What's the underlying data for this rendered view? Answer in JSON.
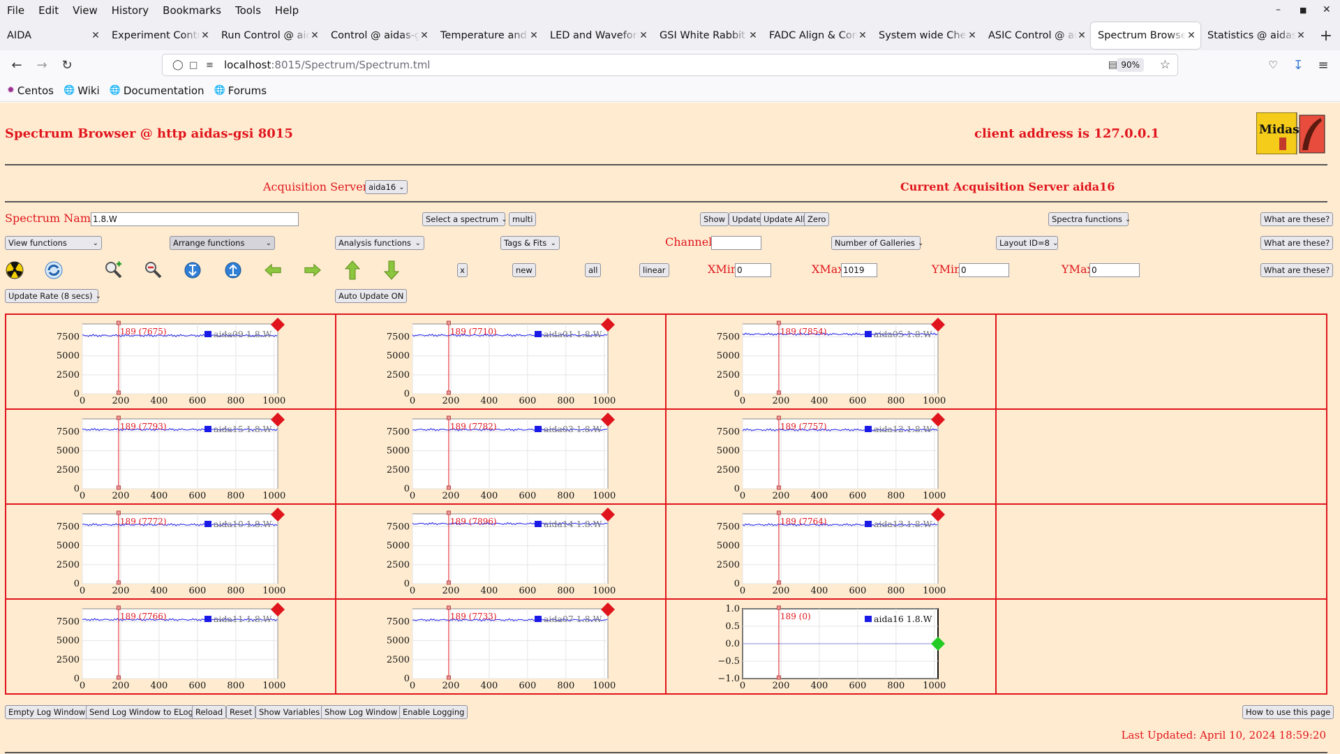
{
  "browser": {
    "menu": [
      "File",
      "Edit",
      "View",
      "History",
      "Bookmarks",
      "Tools",
      "Help"
    ],
    "tabs": [
      {
        "label": "AIDA"
      },
      {
        "label": "Experiment Control"
      },
      {
        "label": "Run Control @ aidas"
      },
      {
        "label": "Control @ aidas-gsi"
      },
      {
        "label": "Temperature and s"
      },
      {
        "label": "LED and Waveform"
      },
      {
        "label": "GSI White Rabbit T"
      },
      {
        "label": "FADC Align & Cont"
      },
      {
        "label": "System wide Check"
      },
      {
        "label": "ASIC Control @ aida"
      },
      {
        "label": "Spectrum Browser"
      },
      {
        "label": "Statistics @ aidas-"
      }
    ],
    "active_tab": 10,
    "url_host": "localhost",
    "url_path": ":8015/Spectrum/Spectrum.tml",
    "zoom": "90%",
    "bookmarks": [
      "Centos",
      "Wiki",
      "Documentation",
      "Forums"
    ]
  },
  "header": {
    "title": "Spectrum Browser @ http aidas-gsi 8015",
    "client": "client address is 127.0.0.1",
    "logo_text": "Midas"
  },
  "acq": {
    "label": "Acquisition Servers",
    "selected": "aida16",
    "current": "Current Acquisition Server aida16"
  },
  "controls": {
    "spectrum_name_label": "Spectrum Name:",
    "spectrum_name_value": "1.8.W",
    "select_spectrum": "Select a spectrum",
    "multi": "multi",
    "show": "Show",
    "update": "Update",
    "update_all": "Update All",
    "zero": "Zero",
    "spectra_functions": "Spectra functions",
    "what": "What are these?",
    "view_functions": "View functions",
    "arrange_functions": "Arrange functions",
    "analysis_functions": "Analysis functions",
    "tags_fits": "Tags & Fits",
    "channel_label": "Channel:",
    "channel_value": "",
    "galleries": "Number of Galleries",
    "layout": "Layout ID=8",
    "x": "x",
    "new": "new",
    "all": "all",
    "linear": "linear",
    "xmin_label": "XMin",
    "xmin": "0",
    "xmax_label": "XMax",
    "xmax": "1019",
    "ymin_label": "YMin",
    "ymin": "0",
    "ymax_label": "YMax",
    "ymax": "0",
    "update_rate": "Update Rate (8 secs)",
    "auto_update": "Auto Update ON"
  },
  "icons": [
    "radiation-icon",
    "refresh-icon",
    "zoom-in-icon",
    "zoom-out-icon",
    "expand-down-icon",
    "expand-up-icon",
    "arrow-left-icon",
    "arrow-right-icon",
    "arrow-up-icon",
    "arrow-down-icon"
  ],
  "chart_data": [
    {
      "type": "line",
      "legend": "aida09 1.8.W",
      "marker": "189 (7675)",
      "x_ticks": [
        0,
        200,
        400,
        600,
        800,
        1000
      ],
      "y_ticks": [
        0,
        2500,
        5000,
        7500
      ],
      "ylim": [
        0,
        9200
      ],
      "level": 7675,
      "status": "red"
    },
    {
      "type": "line",
      "legend": "aida01 1.8.W",
      "marker": "189 (7710)",
      "x_ticks": [
        0,
        200,
        400,
        600,
        800,
        1000
      ],
      "y_ticks": [
        0,
        2500,
        5000,
        7500
      ],
      "ylim": [
        0,
        9200
      ],
      "level": 7710,
      "status": "red"
    },
    {
      "type": "line",
      "legend": "aida05 1.8.W",
      "marker": "189 (7854)",
      "x_ticks": [
        0,
        200,
        400,
        600,
        800,
        1000
      ],
      "y_ticks": [
        0,
        2500,
        5000,
        7500
      ],
      "ylim": [
        0,
        9200
      ],
      "level": 7854,
      "status": "red"
    },
    {
      "type": "line",
      "legend": "aida15 1.8.W",
      "marker": "189 (7793)",
      "x_ticks": [
        0,
        200,
        400,
        600,
        800,
        1000
      ],
      "y_ticks": [
        0,
        2500,
        5000,
        7500
      ],
      "ylim": [
        0,
        9200
      ],
      "level": 7793,
      "status": "red"
    },
    {
      "type": "line",
      "legend": "aida03 1.8.W",
      "marker": "189 (7782)",
      "x_ticks": [
        0,
        200,
        400,
        600,
        800,
        1000
      ],
      "y_ticks": [
        0,
        2500,
        5000,
        7500
      ],
      "ylim": [
        0,
        9200
      ],
      "level": 7782,
      "status": "red"
    },
    {
      "type": "line",
      "legend": "aida12 1.8.W",
      "marker": "189 (7757)",
      "x_ticks": [
        0,
        200,
        400,
        600,
        800,
        1000
      ],
      "y_ticks": [
        0,
        2500,
        5000,
        7500
      ],
      "ylim": [
        0,
        9200
      ],
      "level": 7757,
      "status": "red"
    },
    {
      "type": "line",
      "legend": "aida10 1.8.W",
      "marker": "189 (7772)",
      "x_ticks": [
        0,
        200,
        400,
        600,
        800,
        1000
      ],
      "y_ticks": [
        0,
        2500,
        5000,
        7500
      ],
      "ylim": [
        0,
        9200
      ],
      "level": 7772,
      "status": "red"
    },
    {
      "type": "line",
      "legend": "aida14 1.8.W",
      "marker": "189 (7896)",
      "x_ticks": [
        0,
        200,
        400,
        600,
        800,
        1000
      ],
      "y_ticks": [
        0,
        2500,
        5000,
        7500
      ],
      "ylim": [
        0,
        9200
      ],
      "level": 7896,
      "status": "red"
    },
    {
      "type": "line",
      "legend": "aida13 1.8.W",
      "marker": "189 (7764)",
      "x_ticks": [
        0,
        200,
        400,
        600,
        800,
        1000
      ],
      "y_ticks": [
        0,
        2500,
        5000,
        7500
      ],
      "ylim": [
        0,
        9200
      ],
      "level": 7764,
      "status": "red"
    },
    {
      "type": "line",
      "legend": "aida11 1.8.W",
      "marker": "189 (7766)",
      "x_ticks": [
        0,
        200,
        400,
        600,
        800,
        1000
      ],
      "y_ticks": [
        0,
        2500,
        5000,
        7500
      ],
      "ylim": [
        0,
        9200
      ],
      "level": 7766,
      "status": "red"
    },
    {
      "type": "line",
      "legend": "aida07 1.8.W",
      "marker": "189 (7733)",
      "x_ticks": [
        0,
        200,
        400,
        600,
        800,
        1000
      ],
      "y_ticks": [
        0,
        2500,
        5000,
        7500
      ],
      "ylim": [
        0,
        9200
      ],
      "level": 7733,
      "status": "red"
    },
    {
      "type": "line",
      "legend": "aida16 1.8.W",
      "marker": "189 (0)",
      "x_ticks": [
        0,
        200,
        400,
        600,
        800,
        1000
      ],
      "y_ticks": [
        "−1.0",
        "−0.5",
        "0.0",
        "0.5",
        "1.0"
      ],
      "ylim": [
        -1,
        1
      ],
      "level": 0,
      "status": "green"
    }
  ],
  "footer": {
    "empty_log": "Empty Log Window",
    "send_log": "Send Log Window to ELog",
    "reload": "Reload",
    "reset": "Reset",
    "show_vars": "Show Variables",
    "show_log": "Show Log Window",
    "enable_logging": "Enable Logging",
    "how_to": "How to use this page",
    "last_updated": "Last Updated: April 10, 2024 18:59:20"
  },
  "colors": {
    "accent_red": "#e0141c",
    "page_bg": "#ffecd0",
    "trace": "#1a1ae6",
    "ok_green": "#22cc22"
  }
}
